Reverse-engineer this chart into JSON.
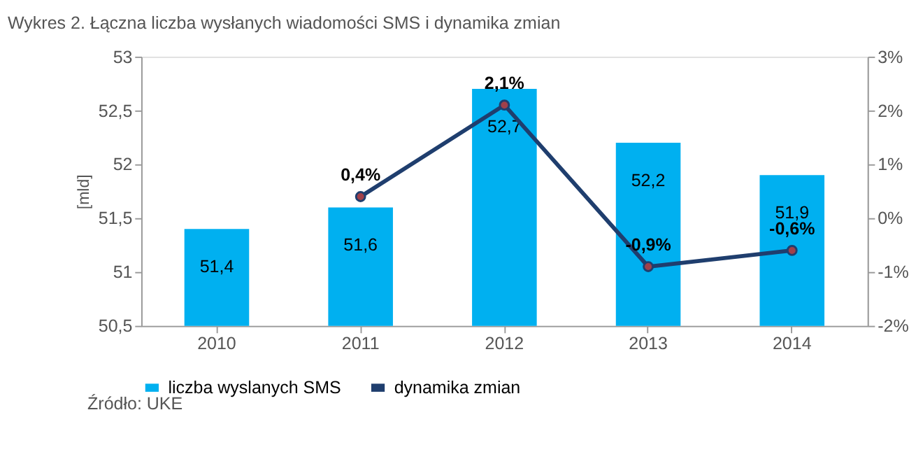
{
  "chart_data": {
    "type": "bar",
    "title": "Wykres 2. Łączna liczba wysłanych wiadomości SMS i dynamika zmian",
    "ylabel": "[mld]",
    "categories": [
      "2010",
      "2011",
      "2012",
      "2013",
      "2014"
    ],
    "series": [
      {
        "name": "liczba wyslanych SMS",
        "color": "#00b0f0",
        "values": [
          51.4,
          51.6,
          52.7,
          52.2,
          51.9
        ],
        "value_labels": [
          "51,4",
          "51,6",
          "52,7",
          "52,2",
          "51,9"
        ]
      },
      {
        "name": "dynamika zmian",
        "type": "line",
        "axis": "y2",
        "color": "#1f3e6e",
        "values": [
          null,
          0.4,
          2.1,
          -0.9,
          -0.6
        ],
        "value_labels": [
          null,
          "0,4%",
          "2,1%",
          "-0,9%",
          "-0,6%"
        ]
      }
    ],
    "ylim": [
      50.5,
      53
    ],
    "yticks": [
      {
        "value": 50.5,
        "label": "50,5"
      },
      51,
      {
        "value": 51.5,
        "label": "51,5"
      },
      52,
      {
        "value": 52.5,
        "label": "52,5"
      },
      53
    ],
    "y2lim": [
      -2,
      3
    ],
    "y2ticks": [
      {
        "value": -2,
        "label": "-2%"
      },
      {
        "value": -1,
        "label": "-1%"
      },
      {
        "value": 0,
        "label": "0%"
      },
      {
        "value": 1,
        "label": "1%"
      },
      {
        "value": 2,
        "label": "2%"
      },
      {
        "value": 3,
        "label": "3%"
      }
    ],
    "marker": "circle",
    "legend": "bottom",
    "grid": false,
    "annotations": [
      "Źródło: UKE"
    ]
  }
}
